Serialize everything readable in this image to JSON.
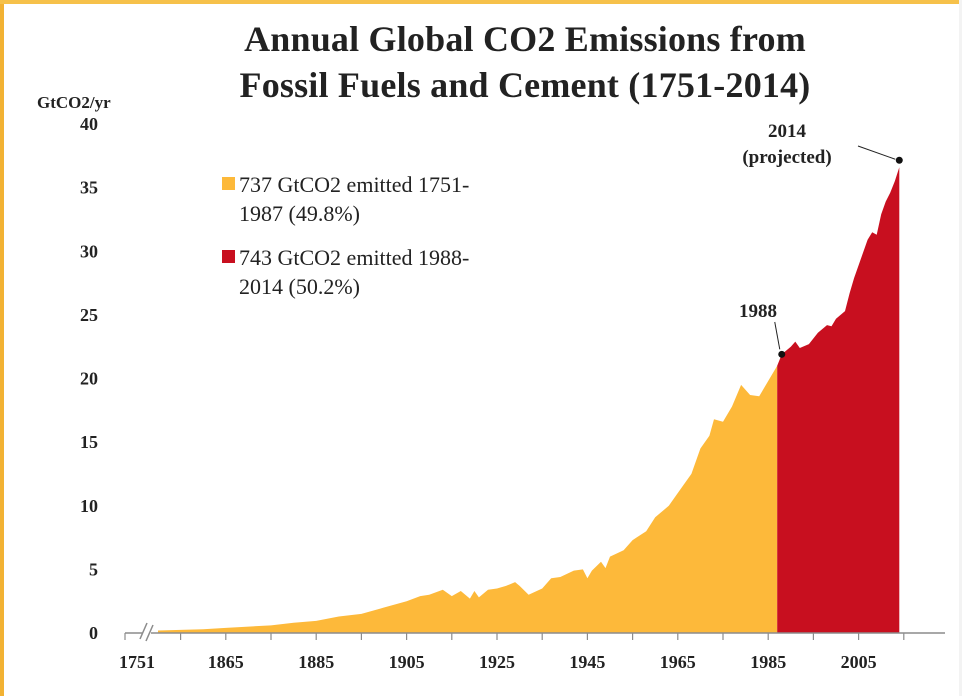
{
  "chart_data": {
    "type": "area",
    "title": "Annual Global CO2 Emissions from Fossil Fuels and Cement (1751-2014)",
    "title_lines": [
      "Annual Global CO2 Emissions from",
      "Fossil Fuels and Cement (1751-2014)"
    ],
    "ylabel": "GtCO2/yr",
    "xlabel": "",
    "ylim": [
      0,
      40
    ],
    "y_ticks": [
      0,
      5,
      10,
      15,
      20,
      25,
      30,
      35,
      40
    ],
    "x_tick_labels": [
      "1751",
      "1865",
      "1885",
      "1905",
      "1925",
      "1945",
      "1965",
      "1985",
      "2005"
    ],
    "x_axis_break": "1751-1850",
    "x_range": [
      1850,
      2014
    ],
    "grid": false,
    "legend_placement": "upper-left",
    "series": [
      {
        "name": "737 GtCO2 emitted 1751-1987 (49.8%)",
        "legend_lines": [
          "737 GtCO2 emitted 1751-",
          "1987 (49.8%)"
        ],
        "color": "#fdb93a",
        "points": [
          [
            1850,
            0.2
          ],
          [
            1855,
            0.24
          ],
          [
            1860,
            0.3
          ],
          [
            1865,
            0.4
          ],
          [
            1870,
            0.5
          ],
          [
            1875,
            0.6
          ],
          [
            1880,
            0.8
          ],
          [
            1885,
            0.95
          ],
          [
            1890,
            1.3
          ],
          [
            1895,
            1.5
          ],
          [
            1900,
            2.0
          ],
          [
            1905,
            2.5
          ],
          [
            1908,
            2.9
          ],
          [
            1910,
            3.0
          ],
          [
            1913,
            3.4
          ],
          [
            1915,
            2.9
          ],
          [
            1917,
            3.3
          ],
          [
            1919,
            2.7
          ],
          [
            1920,
            3.3
          ],
          [
            1921,
            2.8
          ],
          [
            1923,
            3.4
          ],
          [
            1925,
            3.5
          ],
          [
            1927,
            3.7
          ],
          [
            1929,
            4.0
          ],
          [
            1930,
            3.7
          ],
          [
            1932,
            3.0
          ],
          [
            1935,
            3.5
          ],
          [
            1937,
            4.3
          ],
          [
            1939,
            4.4
          ],
          [
            1942,
            4.9
          ],
          [
            1944,
            5.0
          ],
          [
            1945,
            4.3
          ],
          [
            1946,
            4.9
          ],
          [
            1948,
            5.6
          ],
          [
            1949,
            5.1
          ],
          [
            1950,
            6.0
          ],
          [
            1953,
            6.5
          ],
          [
            1955,
            7.3
          ],
          [
            1958,
            8.0
          ],
          [
            1960,
            9.1
          ],
          [
            1963,
            10.0
          ],
          [
            1965,
            11.0
          ],
          [
            1968,
            12.5
          ],
          [
            1970,
            14.5
          ],
          [
            1972,
            15.5
          ],
          [
            1973,
            16.8
          ],
          [
            1975,
            16.6
          ],
          [
            1977,
            17.8
          ],
          [
            1979,
            19.5
          ],
          [
            1981,
            18.7
          ],
          [
            1983,
            18.6
          ],
          [
            1985,
            19.8
          ],
          [
            1987,
            21.0
          ]
        ]
      },
      {
        "name": "743 GtCO2 emitted 1988-2014 (50.2%)",
        "legend_lines": [
          "743 GtCO2 emitted 1988-",
          "2014 (50.2%)"
        ],
        "color": "#c80f1f",
        "points": [
          [
            1987,
            21.0
          ],
          [
            1988,
            21.9
          ],
          [
            1990,
            22.5
          ],
          [
            1991,
            22.9
          ],
          [
            1992,
            22.4
          ],
          [
            1994,
            22.7
          ],
          [
            1996,
            23.6
          ],
          [
            1998,
            24.2
          ],
          [
            1999,
            24.1
          ],
          [
            2000,
            24.7
          ],
          [
            2002,
            25.3
          ],
          [
            2003,
            26.7
          ],
          [
            2004,
            27.9
          ],
          [
            2005,
            28.9
          ],
          [
            2006,
            29.9
          ],
          [
            2007,
            30.9
          ],
          [
            2008,
            31.5
          ],
          [
            2009,
            31.3
          ],
          [
            2010,
            32.9
          ],
          [
            2011,
            33.9
          ],
          [
            2012,
            34.6
          ],
          [
            2013,
            35.5
          ],
          [
            2014,
            36.6
          ]
        ]
      }
    ],
    "annotations": [
      {
        "lines": [
          "1988"
        ],
        "x": 1988,
        "y": 21.9
      },
      {
        "lines": [
          "2014",
          "(projected)"
        ],
        "x": 2014,
        "y": 36.6
      }
    ]
  }
}
